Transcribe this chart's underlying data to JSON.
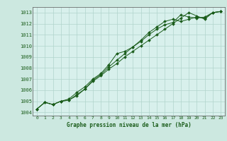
{
  "title": "Graphe pression niveau de la mer (hPa)",
  "bg_color": "#cce8e0",
  "plot_bg_color": "#d8f0ec",
  "grid_color": "#b0d4cc",
  "line_color": "#1a5c1a",
  "xlim": [
    -0.5,
    23.5
  ],
  "ylim": [
    1003.7,
    1013.5
  ],
  "xticks": [
    0,
    1,
    2,
    3,
    4,
    5,
    6,
    7,
    8,
    9,
    10,
    11,
    12,
    13,
    14,
    15,
    16,
    17,
    18,
    19,
    20,
    21,
    22,
    23
  ],
  "yticks": [
    1004,
    1005,
    1006,
    1007,
    1008,
    1009,
    1010,
    1011,
    1012,
    1013
  ],
  "series": [
    [
      1004.3,
      1004.9,
      1004.7,
      1005.0,
      1005.1,
      1005.5,
      1006.1,
      1006.9,
      1007.4,
      1008.1,
      1008.7,
      1009.3,
      1009.9,
      1010.4,
      1011.0,
      1011.5,
      1011.9,
      1012.1,
      1012.8,
      1012.6,
      1012.5,
      1012.6,
      1013.0,
      1013.1
    ],
    [
      1004.3,
      1004.9,
      1004.7,
      1005.0,
      1005.2,
      1005.8,
      1006.3,
      1007.0,
      1007.5,
      1008.3,
      1009.3,
      1009.5,
      1009.9,
      1010.5,
      1011.2,
      1011.7,
      1012.2,
      1012.4,
      1012.2,
      1012.4,
      1012.6,
      1012.5,
      1013.0,
      1013.1
    ],
    [
      1004.3,
      1004.9,
      1004.7,
      1005.0,
      1005.1,
      1005.6,
      1006.1,
      1006.8,
      1007.3,
      1007.9,
      1008.4,
      1009.0,
      1009.5,
      1010.0,
      1010.5,
      1011.0,
      1011.5,
      1012.0,
      1012.5,
      1013.0,
      1012.7,
      1012.4,
      1013.0,
      1013.1
    ]
  ]
}
